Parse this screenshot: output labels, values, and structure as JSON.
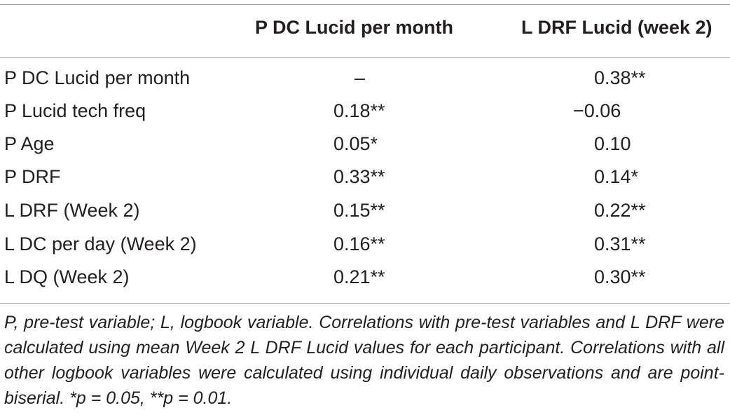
{
  "table": {
    "headers": [
      "",
      "P DC Lucid per month",
      "L DRF Lucid (week 2)"
    ],
    "rows": [
      {
        "label": "P DC Lucid per month",
        "col1": "–",
        "col2": "0.38**"
      },
      {
        "label": "P Lucid tech freq",
        "col1": "0.18**",
        "col2": "−0.06"
      },
      {
        "label": "P Age",
        "col1": "0.05*",
        "col2": "0.10"
      },
      {
        "label": "P DRF",
        "col1": "0.33**",
        "col2": "0.14*"
      },
      {
        "label": "L DRF (Week 2)",
        "col1": "0.15**",
        "col2": "0.22**"
      },
      {
        "label": "L DC per day (Week 2)",
        "col1": "0.16**",
        "col2": "0.31**"
      },
      {
        "label": "L DQ (Week 2)",
        "col1": "0.21**",
        "col2": "0.30**"
      }
    ],
    "footnote": "P, pre-test variable; L, logbook variable. Correlations with pre-test variables and L DRF were calculated using mean Week 2 L DRF Lucid values for each participant. Correlations with all other logbook variables were calculated using individual daily observations and are point-biserial. *p = 0.05, **p = 0.01."
  }
}
